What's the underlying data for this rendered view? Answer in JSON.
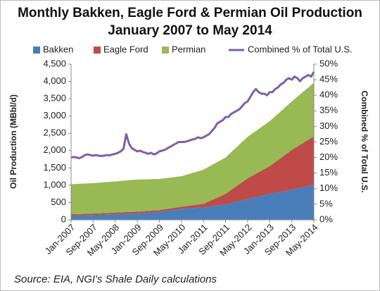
{
  "chart_data": {
    "type": "area",
    "title": "Monthly Bakken, Eagle Ford & Permian Oil Production",
    "subtitle": "January 2007 to May 2014",
    "source": "Source: EIA, NGI's Shale Daily calculations",
    "y_label": "Oil Production (MBbl/d)",
    "y2_label": "Combined % of Total U.S.",
    "categories": [
      "Jan-2007",
      null,
      null,
      null,
      null,
      null,
      null,
      null,
      "Sep-2007",
      null,
      null,
      null,
      null,
      null,
      null,
      null,
      "May-2008",
      null,
      null,
      null,
      null,
      null,
      null,
      null,
      "Jan-2009",
      null,
      null,
      null,
      null,
      null,
      null,
      null,
      "Sep-2009",
      null,
      null,
      null,
      null,
      null,
      null,
      null,
      "May-2010",
      null,
      null,
      null,
      null,
      null,
      null,
      null,
      "Jan-2011",
      null,
      null,
      null,
      null,
      null,
      null,
      null,
      "Sep-2011",
      null,
      null,
      null,
      null,
      null,
      null,
      null,
      "May-2012",
      null,
      null,
      null,
      null,
      null,
      null,
      null,
      "Jan-2013",
      null,
      null,
      null,
      null,
      null,
      null,
      null,
      "Sep-2013",
      null,
      null,
      null,
      null,
      null,
      null,
      null,
      "May-2014"
    ],
    "ylim": [
      0,
      4500
    ],
    "yticks": [
      0,
      {
        "value": 500,
        "label": "500"
      },
      {
        "value": 1000,
        "label": "1,000"
      },
      {
        "value": 1500,
        "label": "1,500"
      },
      {
        "value": 2000,
        "label": "2,000"
      },
      {
        "value": 2500,
        "label": "2,500"
      },
      {
        "value": 3000,
        "label": "3,000"
      },
      {
        "value": 3500,
        "label": "3,500"
      },
      {
        "value": 4000,
        "label": "4,000"
      },
      {
        "value": 4500,
        "label": "4,500"
      }
    ],
    "y2lim": [
      0,
      50
    ],
    "y2ticks": [
      {
        "value": 0,
        "label": "0%"
      },
      {
        "value": 5,
        "label": "5%"
      },
      {
        "value": 10,
        "label": "10%"
      },
      {
        "value": 15,
        "label": "15%"
      },
      {
        "value": 20,
        "label": "20%"
      },
      {
        "value": 25,
        "label": "25%"
      },
      {
        "value": 30,
        "label": "30%"
      },
      {
        "value": 35,
        "label": "35%"
      },
      {
        "value": 40,
        "label": "40%"
      },
      {
        "value": 45,
        "label": "45%"
      },
      {
        "value": 50,
        "label": "50%"
      }
    ],
    "stacked": true,
    "series": [
      {
        "name": "Bakken",
        "color": "#4a7ebb",
        "values": [
          120,
          122,
          125,
          127,
          130,
          132,
          135,
          137,
          140,
          143,
          146,
          149,
          152,
          155,
          158,
          161,
          165,
          167,
          170,
          172,
          175,
          177,
          180,
          182,
          185,
          190,
          196,
          202,
          207,
          213,
          219,
          224,
          230,
          241,
          253,
          264,
          275,
          286,
          298,
          309,
          320,
          325,
          330,
          335,
          340,
          345,
          350,
          355,
          360,
          371,
          383,
          394,
          405,
          416,
          428,
          439,
          450,
          469,
          488,
          506,
          525,
          544,
          563,
          581,
          600,
          619,
          638,
          656,
          675,
          694,
          713,
          731,
          750,
          765,
          780,
          795,
          810,
          825,
          840,
          855,
          870,
          888,
          905,
          923,
          940,
          958,
          975,
          993,
          1010
        ]
      },
      {
        "name": "Eagle Ford",
        "color": "#be4b48",
        "values": [
          40,
          40,
          40,
          40,
          40,
          40,
          40,
          40,
          40,
          41,
          41,
          42,
          43,
          43,
          44,
          44,
          45,
          46,
          46,
          47,
          48,
          48,
          49,
          49,
          50,
          50,
          50,
          50,
          50,
          50,
          50,
          50,
          50,
          51,
          53,
          54,
          55,
          56,
          58,
          59,
          60,
          65,
          70,
          75,
          80,
          85,
          90,
          95,
          100,
          125,
          150,
          175,
          200,
          225,
          250,
          275,
          300,
          338,
          375,
          413,
          450,
          488,
          525,
          563,
          600,
          625,
          650,
          675,
          700,
          725,
          750,
          775,
          800,
          844,
          888,
          931,
          975,
          1019,
          1063,
          1106,
          1150,
          1181,
          1213,
          1244,
          1275,
          1306,
          1338,
          1369,
          1400
        ]
      },
      {
        "name": "Permian",
        "color": "#98b954",
        "values": [
          870,
          871,
          873,
          874,
          875,
          876,
          878,
          879,
          880,
          883,
          885,
          888,
          890,
          893,
          895,
          898,
          900,
          904,
          908,
          911,
          915,
          919,
          923,
          926,
          930,
          926,
          923,
          919,
          915,
          911,
          908,
          904,
          900,
          898,
          895,
          893,
          890,
          888,
          885,
          883,
          880,
          894,
          908,
          921,
          935,
          949,
          963,
          976,
          990,
          998,
          1005,
          1013,
          1020,
          1028,
          1035,
          1043,
          1050,
          1069,
          1088,
          1106,
          1125,
          1144,
          1163,
          1181,
          1200,
          1213,
          1225,
          1238,
          1250,
          1263,
          1275,
          1288,
          1300,
          1313,
          1325,
          1338,
          1350,
          1363,
          1375,
          1388,
          1400,
          1419,
          1438,
          1456,
          1475,
          1494,
          1513,
          1531,
          1550
        ]
      },
      {
        "name": "Combined % of Total U.S.",
        "color": "#7f5fa8",
        "type": "line",
        "axis": "y2",
        "values": [
          20,
          20.2,
          20,
          19.8,
          20.2,
          20.8,
          21,
          20.8,
          20.6,
          20.8,
          20.6,
          20.5,
          20.6,
          20.8,
          20.7,
          21,
          21.2,
          21.5,
          22,
          22.8,
          27.5,
          24.5,
          23,
          22.5,
          22,
          22.2,
          21.8,
          21.5,
          21.2,
          21.5,
          21,
          21.3,
          22,
          22.2,
          22.5,
          23,
          23.5,
          24,
          24.5,
          25,
          25,
          25,
          25.2,
          25.5,
          25.8,
          26,
          26.5,
          26.2,
          26.5,
          27,
          27.5,
          28.5,
          29.5,
          31,
          31.5,
          32,
          33,
          33,
          34,
          34.5,
          35,
          35.5,
          36.5,
          37.5,
          38,
          39.5,
          41,
          42,
          41,
          40.5,
          40.5,
          40,
          41,
          41,
          42,
          42.5,
          43.5,
          44,
          45,
          45.5,
          45,
          46,
          45.5,
          44.5,
          45.5,
          46,
          46.5,
          46,
          47.5
        ]
      }
    ]
  }
}
